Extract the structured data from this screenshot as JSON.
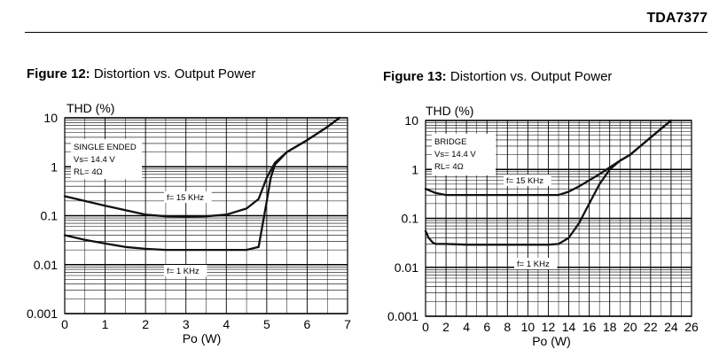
{
  "header": {
    "doc_id": "TDA7377"
  },
  "figures": [
    {
      "label": "Figure 12:",
      "title": "Distortion vs. Output Power"
    },
    {
      "label": "Figure 13:",
      "title": "Distortion vs. Output Power"
    }
  ],
  "chart_data": [
    {
      "type": "line",
      "title": "Figure 12: Distortion vs. Output Power",
      "ylabel": "THD (%)",
      "xlabel": "Po (W)",
      "yscale": "log",
      "xlim": [
        0,
        7
      ],
      "ylim": [
        0.001,
        10
      ],
      "x_ticks": [
        "0",
        "1",
        "2",
        "3",
        "4",
        "5",
        "6",
        "7"
      ],
      "y_ticks": [
        "10",
        "1",
        "0.1",
        "0.01",
        "0.001"
      ],
      "grid": true,
      "legend_box": [
        "SINGLE ENDED",
        "Vs= 14.4 V",
        "RL= 4Ω"
      ],
      "series": [
        {
          "name": "f= 15 KHz",
          "x": [
            0,
            0.5,
            1,
            1.5,
            2,
            2.5,
            3,
            3.5,
            4,
            4.5,
            4.8,
            5,
            5.2,
            5.5,
            6,
            6.5,
            6.8
          ],
          "y": [
            0.25,
            0.2,
            0.16,
            0.13,
            0.105,
            0.097,
            0.095,
            0.097,
            0.105,
            0.14,
            0.22,
            0.6,
            1.2,
            2.0,
            3.5,
            6.5,
            10
          ]
        },
        {
          "name": "f= 1 KHz",
          "x": [
            0,
            0.5,
            1,
            1.5,
            2,
            2.5,
            3,
            3.5,
            4,
            4.5,
            4.8,
            5,
            5.1,
            5.2,
            5.5,
            6,
            6.5,
            6.8
          ],
          "y": [
            0.04,
            0.032,
            0.027,
            0.023,
            0.021,
            0.02,
            0.02,
            0.02,
            0.02,
            0.02,
            0.023,
            0.2,
            0.6,
            1.1,
            2.0,
            3.5,
            6.5,
            10
          ]
        }
      ]
    },
    {
      "type": "line",
      "title": "Figure 13: Distortion vs. Output Power",
      "ylabel": "THD (%)",
      "xlabel": "Po (W)",
      "yscale": "log",
      "xlim": [
        0,
        26
      ],
      "ylim": [
        0.001,
        10
      ],
      "x_ticks": [
        "0",
        "2",
        "4",
        "6",
        "8",
        "10",
        "12",
        "14",
        "16",
        "18",
        "20",
        "22",
        "24",
        "26"
      ],
      "y_ticks": [
        "10",
        "1",
        "0.1",
        "0.01",
        "0.001"
      ],
      "grid": true,
      "legend_box": [
        "BRIDGE",
        "Vs= 14.4 V",
        "RL= 4Ω"
      ],
      "series": [
        {
          "name": "f= 15 KHz",
          "x": [
            0,
            1,
            2,
            4,
            6,
            8,
            10,
            12,
            13,
            14,
            15,
            16,
            17,
            18,
            19,
            20,
            22,
            24
          ],
          "y": [
            0.4,
            0.33,
            0.3,
            0.3,
            0.3,
            0.3,
            0.3,
            0.3,
            0.3,
            0.35,
            0.45,
            0.6,
            0.8,
            1.1,
            1.5,
            2.0,
            4.5,
            10
          ]
        },
        {
          "name": "f= 1 KHz",
          "x": [
            0,
            0.3,
            0.7,
            1,
            2,
            4,
            6,
            8,
            10,
            12,
            13,
            14,
            15,
            16,
            17,
            18,
            19,
            20,
            22,
            24
          ],
          "y": [
            0.055,
            0.04,
            0.032,
            0.03,
            0.03,
            0.029,
            0.029,
            0.029,
            0.029,
            0.029,
            0.03,
            0.04,
            0.08,
            0.2,
            0.5,
            1.0,
            1.5,
            2.0,
            4.5,
            10
          ]
        }
      ]
    }
  ]
}
